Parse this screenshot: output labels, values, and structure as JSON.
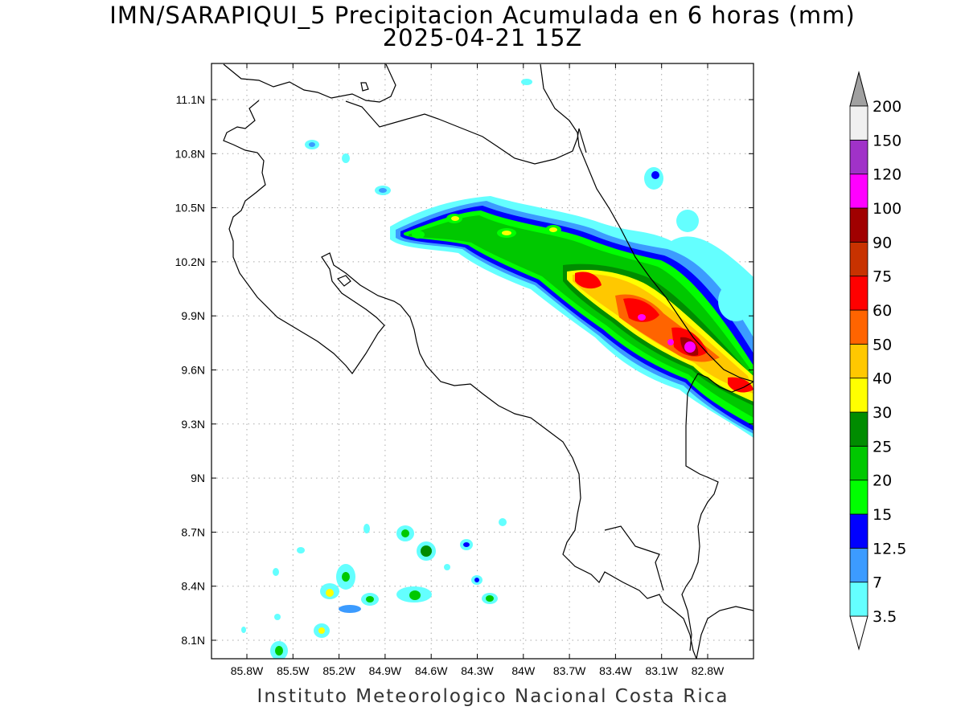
{
  "title": {
    "line1": "IMN/SARAPIQUI_5 Precipitacion Acumulada en 6 horas (mm)",
    "line2": "2025-04-21 15Z"
  },
  "footer": "Instituto Meteorologico Nacional Costa Rica",
  "map": {
    "lat_ticks": [
      "11.1N",
      "10.8N",
      "10.5N",
      "10.2N",
      "9.9N",
      "9.6N",
      "9.3N",
      "9N",
      "8.7N",
      "8.4N",
      "8.1N"
    ],
    "lon_ticks": [
      "85.8W",
      "85.5W",
      "85.2W",
      "84.9W",
      "84.6W",
      "84.3W",
      "84W",
      "83.7W",
      "83.4W",
      "83.1W",
      "82.8W"
    ],
    "grid": true
  },
  "colorbar": {
    "levels": [
      "3.5",
      "7",
      "12.5",
      "15",
      "20",
      "25",
      "30",
      "40",
      "50",
      "60",
      "75",
      "90",
      "100",
      "120",
      "150",
      "200"
    ],
    "colors": [
      "#64ffff",
      "#3c9bff",
      "#0000ff",
      "#00ff00",
      "#00c800",
      "#008c00",
      "#ffff00",
      "#ffc800",
      "#ff6400",
      "#ff0000",
      "#c83200",
      "#a00000",
      "#ff00ff",
      "#a032c8",
      "#f0f0f0"
    ],
    "top_arrow_color": "#a0a0a0",
    "bottom_arrow_color": "#ffffff"
  }
}
